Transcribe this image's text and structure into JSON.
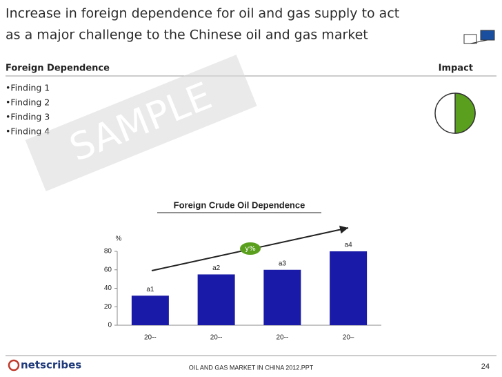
{
  "header": {
    "title_lines": [
      "Increase in foreign dependence for oil and gas supply to act",
      "as a major challenge to the Chinese oil and gas market"
    ]
  },
  "section": {
    "left_heading": "Foreign Dependence",
    "right_heading": "Impact",
    "findings": [
      "•Finding 1",
      "•Finding 2",
      "•Finding 3",
      "•Finding 4"
    ]
  },
  "watermark": "SAMPLE",
  "chart_data": {
    "type": "bar",
    "title": "Foreign Crude Oil Dependence",
    "y_label": "%",
    "categories": [
      "20--",
      "20--",
      "20--",
      "20–"
    ],
    "values": [
      32,
      55,
      60,
      80
    ],
    "value_labels": [
      "a1",
      "a2",
      "a3",
      "a4"
    ],
    "color": "#1a1aa8",
    "ylim": [
      0,
      80
    ],
    "yticks": [
      0,
      20,
      40,
      60,
      80
    ],
    "annotation": "y%"
  },
  "footer": {
    "logo": "netscribes",
    "text": "OIL AND GAS MARKET IN CHINA 2012.PPT",
    "page": "24"
  }
}
